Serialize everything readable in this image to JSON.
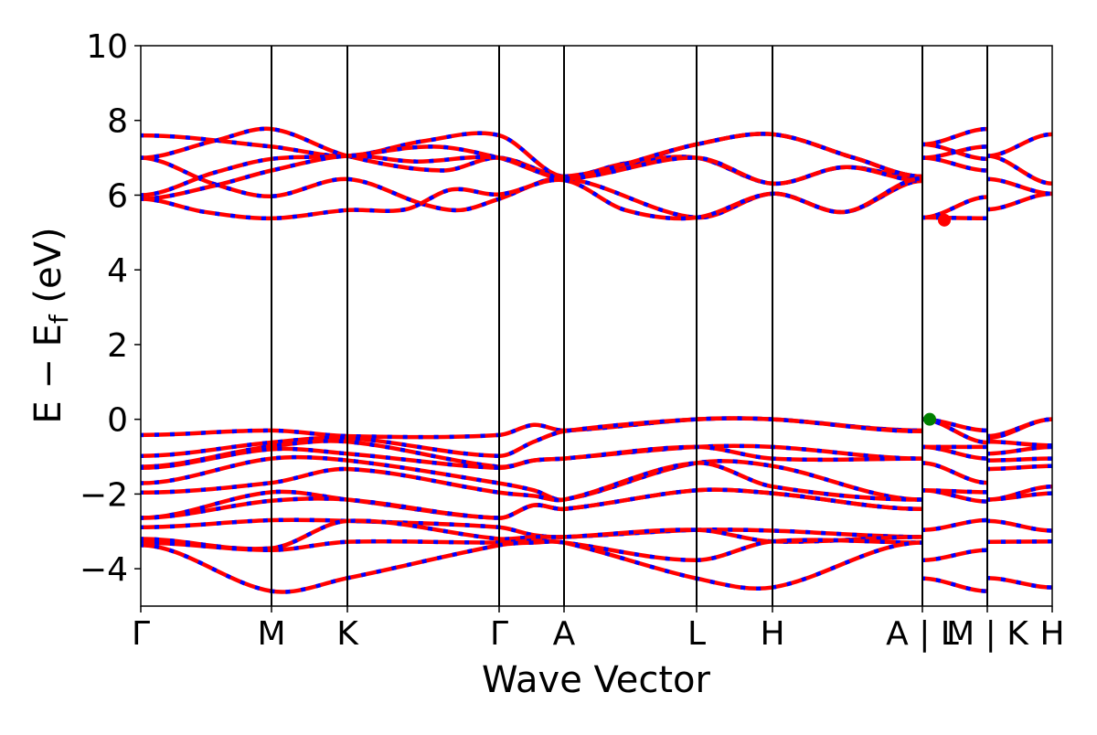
{
  "chart_data": {
    "type": "line",
    "title": "",
    "xlabel": "Wave Vector",
    "ylabel": "E − E",
    "ylabel_sub": "f",
    "ylabel_unit": " (eV)",
    "ylim": [
      -5,
      10
    ],
    "xlim": [
      0,
      9.97
    ],
    "yticks": [
      {
        "value": -4,
        "label": "−4"
      },
      {
        "value": -2,
        "label": "−2"
      },
      {
        "value": 0,
        "label": "0"
      },
      {
        "value": 2,
        "label": "2"
      },
      {
        "value": 4,
        "label": "4"
      },
      {
        "value": 6,
        "label": "6"
      },
      {
        "value": 8,
        "label": "8"
      },
      {
        "value": 10,
        "label": "10"
      }
    ],
    "xticks": [
      {
        "k": 0,
        "label": "Γ"
      },
      {
        "k": 1.43,
        "label": "M"
      },
      {
        "k": 2.26,
        "label": "K"
      },
      {
        "k": 3.92,
        "label": "Γ"
      },
      {
        "k": 4.63,
        "label": "A"
      },
      {
        "k": 6.08,
        "label": "L"
      },
      {
        "k": 6.91,
        "label": "H"
      },
      {
        "k": 8.55,
        "label": "A | L"
      },
      {
        "k": 9.26,
        "label": "M | K"
      },
      {
        "k": 9.97,
        "label": "H"
      }
    ],
    "colors": {
      "solid": "#ff0000",
      "dashed": "#0000ff",
      "vbm": "#008000",
      "cbm": "#ff0000"
    },
    "markers": [
      {
        "name": "cbm",
        "k": 8.79,
        "E": 5.33,
        "color": "#ff0000"
      },
      {
        "name": "vbm",
        "k": 8.63,
        "E": 0.0,
        "color": "#008000"
      }
    ],
    "segments": [
      {
        "k": [
          0,
          1.43,
          2.26,
          3.92,
          4.3,
          4.63,
          6.08,
          6.91,
          8.55
        ],
        "bands": [
          [
            [
              0,
              7.6
            ],
            [
              1.43,
              7.3
            ],
            [
              2.26,
              7.05
            ],
            [
              3.1,
              7.45
            ],
            [
              3.92,
              7.6
            ],
            [
              4.63,
              6.5
            ],
            [
              6.08,
              7.36
            ],
            [
              6.91,
              7.63
            ],
            [
              7.8,
              7.0
            ],
            [
              8.55,
              6.5
            ]
          ],
          [
            [
              0,
              7.0
            ],
            [
              0.8,
              7.45
            ],
            [
              1.43,
              7.77
            ],
            [
              2.26,
              7.05
            ],
            [
              3.3,
              6.66
            ],
            [
              3.92,
              7.0
            ],
            [
              4.63,
              6.5
            ],
            [
              5.3,
              6.85
            ],
            [
              6.08,
              7.0
            ],
            [
              6.91,
              6.31
            ],
            [
              7.7,
              6.75
            ],
            [
              8.55,
              6.45
            ]
          ],
          [
            [
              0,
              7.0
            ],
            [
              0.8,
              6.3
            ],
            [
              1.43,
              5.97
            ],
            [
              2.26,
              6.43
            ],
            [
              3.1,
              5.75
            ],
            [
              3.5,
              5.6
            ],
            [
              3.92,
              5.9
            ],
            [
              4.63,
              6.45
            ],
            [
              6.08,
              5.4
            ],
            [
              6.91,
              6.04
            ],
            [
              7.7,
              5.55
            ],
            [
              8.55,
              6.38
            ]
          ],
          [
            [
              0,
              6.0
            ],
            [
              0.8,
              6.6
            ],
            [
              1.43,
              6.97
            ],
            [
              2.26,
              7.05
            ],
            [
              3.2,
              7.3
            ],
            [
              3.92,
              7.0
            ],
            [
              4.63,
              6.5
            ],
            [
              6.08,
              7.36
            ],
            [
              6.91,
              7.63
            ],
            [
              7.8,
              7.0
            ],
            [
              8.55,
              6.5
            ]
          ],
          [
            [
              0,
              5.9
            ],
            [
              0.8,
              6.25
            ],
            [
              1.43,
              6.66
            ],
            [
              2.26,
              7.05
            ],
            [
              3.0,
              6.9
            ],
            [
              3.92,
              7.0
            ],
            [
              4.63,
              6.45
            ],
            [
              6.08,
              7.0
            ],
            [
              6.91,
              6.31
            ],
            [
              7.7,
              6.75
            ],
            [
              8.55,
              6.38
            ]
          ],
          [
            [
              0,
              5.9
            ],
            [
              0.7,
              5.55
            ],
            [
              1.43,
              5.38
            ],
            [
              2.26,
              5.6
            ],
            [
              2.9,
              5.62
            ],
            [
              3.4,
              6.15
            ],
            [
              3.92,
              6.02
            ],
            [
              4.63,
              6.4
            ],
            [
              5.3,
              5.6
            ],
            [
              6.08,
              5.4
            ],
            [
              6.91,
              6.04
            ],
            [
              7.7,
              5.55
            ],
            [
              8.55,
              6.45
            ]
          ],
          [
            -0.42,
            -0.3,
            -0.45,
            -0.42,
            -0.15,
            -0.3,
            0.0,
            0.0,
            -0.3
          ],
          [
            -0.98,
            -0.62,
            -0.5,
            -0.98,
            -0.6,
            -0.32,
            0.0,
            0.0,
            -0.32
          ],
          [
            -1.27,
            -0.72,
            -0.6,
            -1.27,
            -1.1,
            -1.05,
            -0.74,
            -0.74,
            -1.05
          ],
          [
            -1.3,
            -0.8,
            -0.92,
            -1.3,
            -1.1,
            -1.05,
            -0.74,
            -1.05,
            -1.05
          ],
          [
            -1.71,
            -1.05,
            -1.1,
            -1.71,
            -1.9,
            -2.15,
            -1.17,
            -1.25,
            -2.15
          ],
          [
            -1.96,
            -1.7,
            -1.33,
            -1.96,
            -2.05,
            -2.15,
            -1.17,
            -1.8,
            -2.15
          ],
          [
            -2.64,
            -1.95,
            -2.15,
            -2.64,
            -2.3,
            -2.4,
            -1.9,
            -1.98,
            -2.4
          ],
          [
            -2.64,
            -2.18,
            -2.15,
            -2.64,
            -2.3,
            -2.4,
            -1.9,
            -1.98,
            -2.4
          ],
          [
            -2.89,
            -2.7,
            -2.72,
            -2.89,
            -3.1,
            -3.15,
            -2.96,
            -2.98,
            -3.15
          ],
          [
            -3.2,
            -3.45,
            -2.72,
            -3.2,
            -3.15,
            -3.15,
            -2.96,
            -3.27,
            -3.15
          ],
          [
            -3.3,
            -3.5,
            -3.28,
            -3.3,
            -3.25,
            -3.3,
            -3.77,
            -3.27,
            -3.3
          ],
          [
            -3.37,
            -4.6,
            -4.25,
            -3.37,
            -3.3,
            -3.3,
            -4.26,
            -4.5,
            -3.3
          ]
        ]
      },
      {
        "k": [
          8.55,
          9.26
        ],
        "bands": [
          [
            7.36,
            7.77
          ],
          [
            7.36,
            6.97
          ],
          [
            7.0,
            7.3
          ],
          [
            7.0,
            6.66
          ],
          [
            5.4,
            5.95
          ],
          [
            5.4,
            5.38
          ],
          [
            0,
            -0.3
          ],
          [
            0,
            -0.62
          ],
          [
            -0.74,
            -0.74
          ],
          [
            -0.74,
            -1.05
          ],
          [
            -1.17,
            -1.7
          ],
          [
            -1.9,
            -1.95
          ],
          [
            -1.9,
            -2.2
          ],
          [
            -2.96,
            -2.7
          ],
          [
            -3.77,
            -3.5
          ],
          [
            -4.26,
            -4.6
          ]
        ]
      },
      {
        "k": [
          9.26,
          9.97
        ],
        "bands": [
          [
            7.05,
            7.63
          ],
          [
            7.05,
            6.31
          ],
          [
            6.43,
            6.04
          ],
          [
            5.62,
            6.04
          ],
          [
            -0.45,
            0
          ],
          [
            -0.5,
            0
          ],
          [
            -0.6,
            -0.7
          ],
          [
            -0.92,
            -0.74
          ],
          [
            -1.1,
            -1.05
          ],
          [
            -1.33,
            -1.25
          ],
          [
            -2.15,
            -1.8
          ],
          [
            -2.15,
            -1.98
          ],
          [
            -2.72,
            -2.98
          ],
          [
            -3.28,
            -3.27
          ],
          [
            -4.25,
            -4.5
          ]
        ]
      }
    ]
  }
}
